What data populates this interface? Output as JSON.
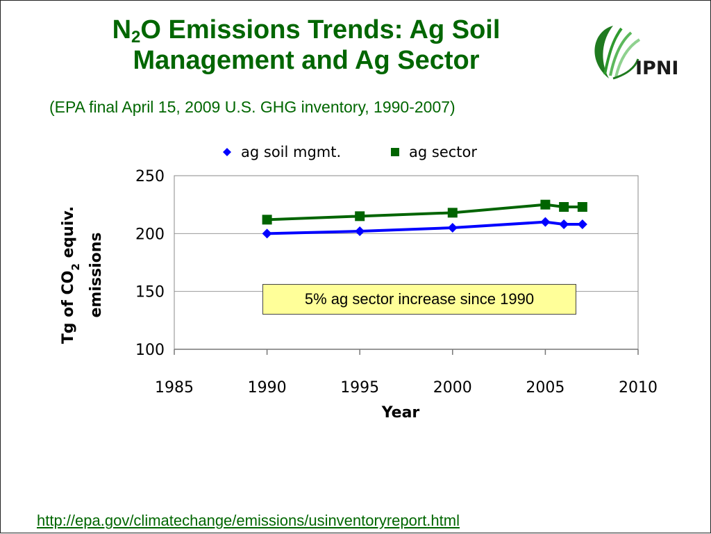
{
  "slide": {
    "title_prefix": "N",
    "title_subscript": "2",
    "title_line1_rest": "O Emissions Trends: Ag Soil",
    "title_line2": "Management and Ag Sector",
    "subtitle": "(EPA  final April 15, 2009  U.S. GHG inventory, 1990-2007)",
    "logo_text": "IPNI",
    "footer_link": "http://epa.gov/climatechange/emissions/usinventoryreport.html",
    "annotation": "5% ag sector increase since 1990"
  },
  "colors": {
    "title": "#006600",
    "soil_series": "#0000ff",
    "sector_series": "#006400",
    "annotation_bg": "#ffff99"
  },
  "chart_data": {
    "type": "line",
    "xlabel": "Year",
    "ylabel_parts": {
      "prefix": "Tg  of  CO",
      "subscript": "2",
      "suffix": " equiv.",
      "line2": "emissions"
    },
    "xlim": [
      1985,
      2010
    ],
    "ylim": [
      100,
      250
    ],
    "x_ticks": [
      1985,
      1990,
      1995,
      2000,
      2005,
      2010
    ],
    "y_ticks": [
      100,
      150,
      200,
      250
    ],
    "grid": "horizontal",
    "legend_position": "top",
    "series": [
      {
        "name": "ag soil mgmt.",
        "marker": "diamond",
        "color": "#0000ff",
        "x": [
          1990,
          1995,
          2000,
          2005,
          2006,
          2007
        ],
        "y": [
          200,
          202,
          205,
          210,
          208,
          208
        ]
      },
      {
        "name": "ag sector",
        "marker": "square",
        "color": "#006400",
        "x": [
          1990,
          1995,
          2000,
          2005,
          2006,
          2007
        ],
        "y": [
          212,
          215,
          218,
          225,
          223,
          223
        ]
      }
    ]
  }
}
